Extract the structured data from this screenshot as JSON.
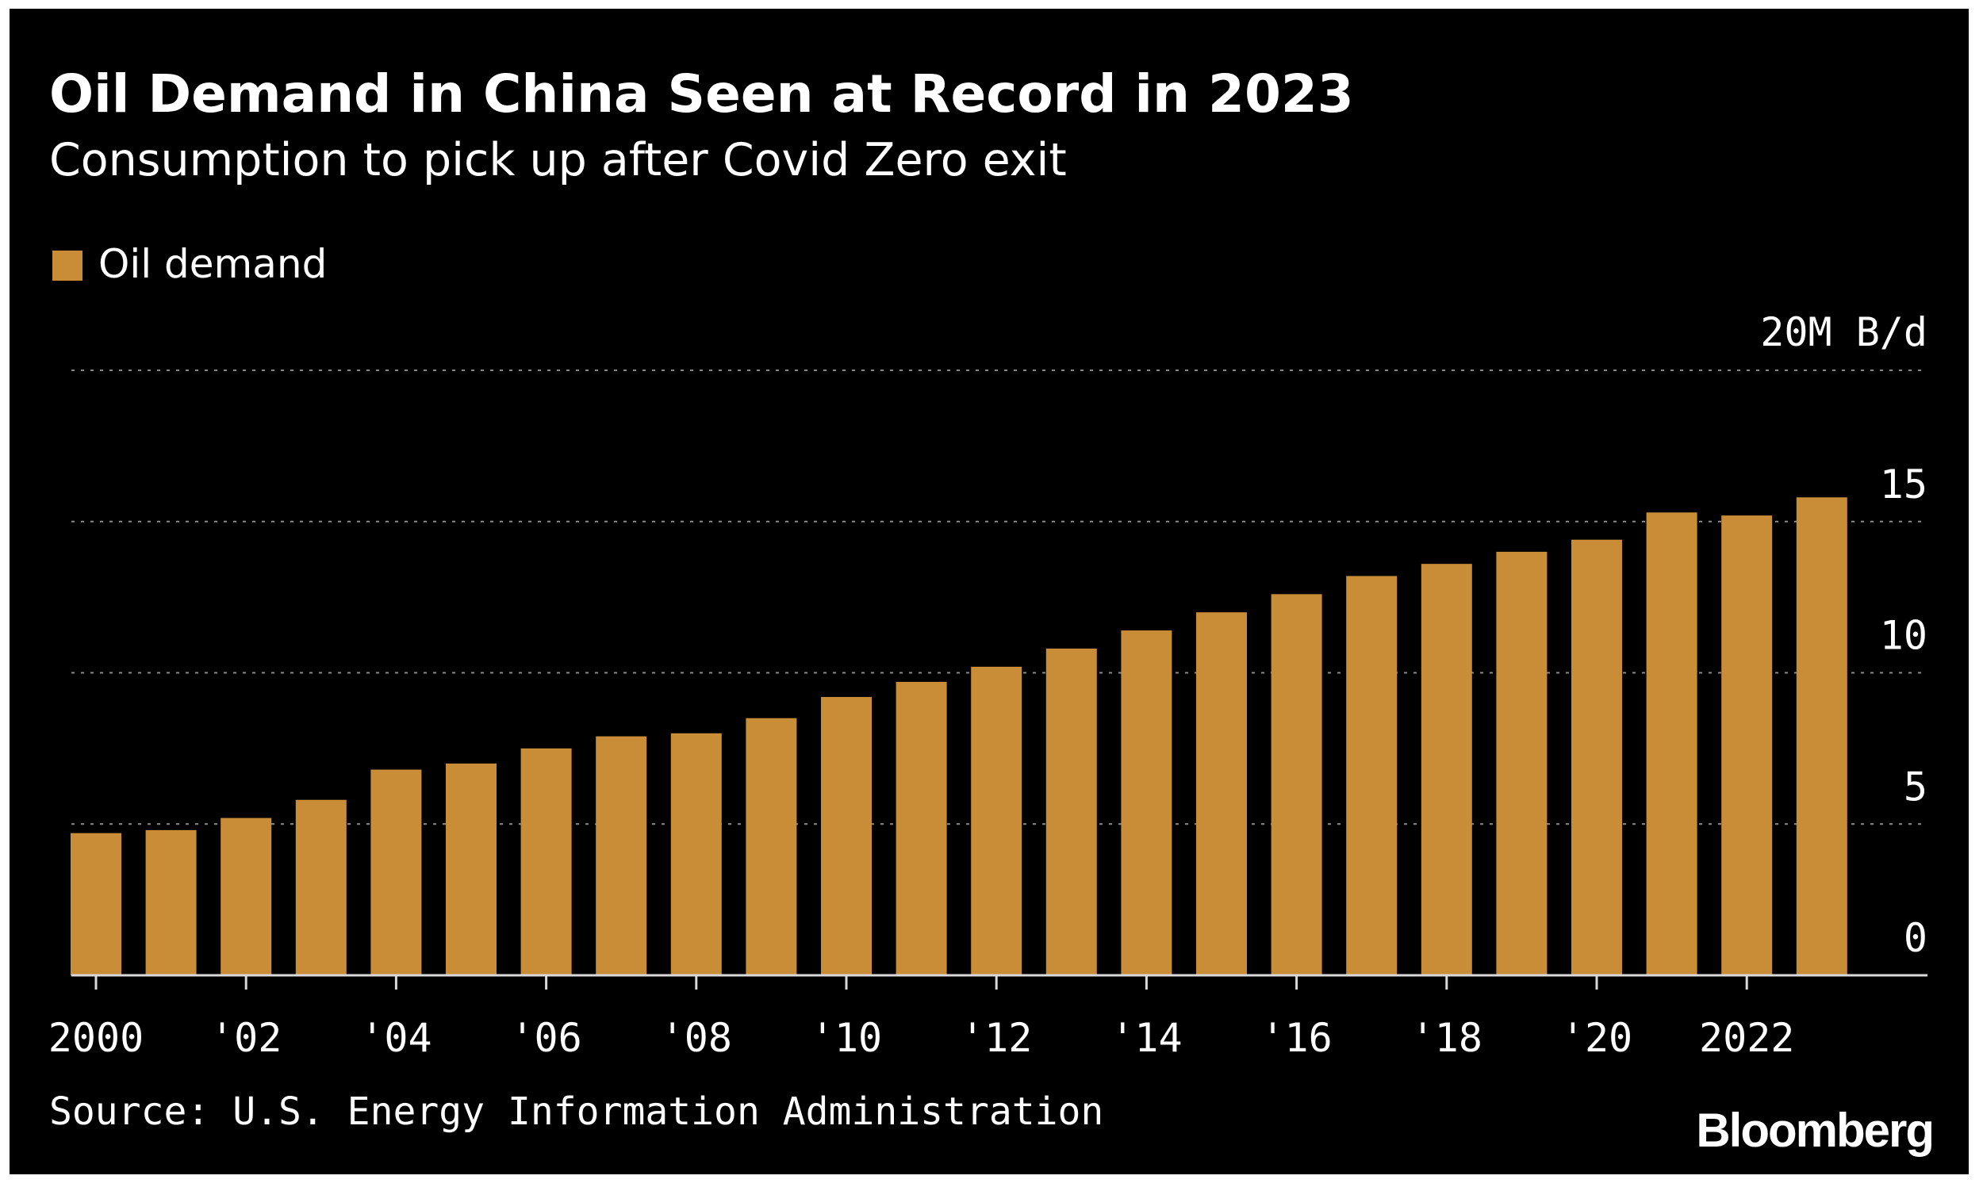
{
  "chart_data": {
    "type": "bar",
    "title": "Oil Demand in China Seen at Record in 2023",
    "subtitle": "Consumption to pick up after Covid Zero exit",
    "ylabel": "20M B/d",
    "ylim": [
      0,
      20
    ],
    "yticks": [
      0,
      5,
      10,
      15
    ],
    "grid": true,
    "legend_position": "top-left",
    "series": [
      {
        "name": "Oil demand",
        "color": "#c98c37",
        "values": [
          4.7,
          4.8,
          5.2,
          5.8,
          6.8,
          7.0,
          7.5,
          7.9,
          8.0,
          8.5,
          9.2,
          9.7,
          10.2,
          10.8,
          11.4,
          12.0,
          12.6,
          13.2,
          13.6,
          14.0,
          14.4,
          15.3,
          15.2,
          15.8
        ]
      }
    ],
    "categories": [
      "2000",
      "2001",
      "2002",
      "2003",
      "2004",
      "2005",
      "2006",
      "2007",
      "2008",
      "2009",
      "2010",
      "2011",
      "2012",
      "2013",
      "2014",
      "2015",
      "2016",
      "2017",
      "2018",
      "2019",
      "2020",
      "2021",
      "2022",
      "2023"
    ],
    "xticks": [
      {
        "category": "2000",
        "label": "2000"
      },
      {
        "category": "2002",
        "label": "'02"
      },
      {
        "category": "2004",
        "label": "'04"
      },
      {
        "category": "2006",
        "label": "'06"
      },
      {
        "category": "2008",
        "label": "'08"
      },
      {
        "category": "2010",
        "label": "'10"
      },
      {
        "category": "2012",
        "label": "'12"
      },
      {
        "category": "2014",
        "label": "'14"
      },
      {
        "category": "2016",
        "label": "'16"
      },
      {
        "category": "2018",
        "label": "'18"
      },
      {
        "category": "2020",
        "label": "'20"
      },
      {
        "category": "2022",
        "label": "2022"
      }
    ],
    "source": "Source: U.S. Energy Information Administration",
    "brand": "Bloomberg"
  }
}
